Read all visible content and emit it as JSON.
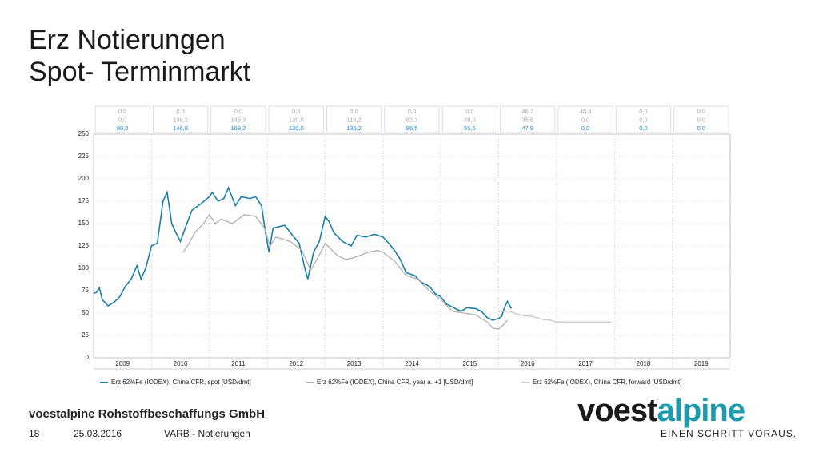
{
  "slide": {
    "title_line1": "Erz Notierungen",
    "title_line2": "Spot- Terminmarkt",
    "company": "voestalpine Rohstoffbeschaffungs GmbH",
    "page": "18",
    "date": "25.03.2016",
    "section": "VARB - Notierungen",
    "logo_part1": "voest",
    "logo_part2": "alpine",
    "tagline": "EINEN SCHRITT VORAUS."
  },
  "chart_data": {
    "type": "line",
    "xlim": [
      2009,
      2020
    ],
    "xticks": [
      {
        "value": 2009.5,
        "label": "2009"
      },
      {
        "value": 2010.5,
        "label": "2010"
      },
      {
        "value": 2011.5,
        "label": "2011"
      },
      {
        "value": 2012.5,
        "label": "2012"
      },
      {
        "value": 2013.5,
        "label": "2013"
      },
      {
        "value": 2014.5,
        "label": "2014"
      },
      {
        "value": 2015.5,
        "label": "2015"
      },
      {
        "value": 2016.5,
        "label": "2016"
      },
      {
        "value": 2017.5,
        "label": "2017"
      },
      {
        "value": 2018.5,
        "label": "2018"
      },
      {
        "value": 2019.5,
        "label": "2019"
      }
    ],
    "ylim": [
      0,
      250
    ],
    "yticks": [
      0,
      25,
      50,
      75,
      100,
      125,
      150,
      175,
      200,
      225,
      250
    ],
    "grid": true,
    "table": [
      [
        "0,0",
        "0,0",
        "0,0",
        "0,0",
        "0,0",
        "0,0",
        "0,0",
        "48,7",
        "40,4",
        "0,0",
        "0,0"
      ],
      [
        "0,0",
        "136,2",
        "145,3",
        "120,0",
        "116,2",
        "82,3",
        "48,0",
        "35,6",
        "0,0",
        "0,0",
        "0,0"
      ],
      [
        "80,0",
        "146,8",
        "169,2",
        "130,0",
        "135,2",
        "96,5",
        "55,5",
        "47,9",
        "0,0",
        "0,0",
        "0,0"
      ]
    ],
    "table_colors": [
      "#a8a8a8",
      "#a8a8a8",
      "#1a8bc9"
    ],
    "series": [
      {
        "name": "Erz 62%Fe (IODEX), China CFR, spot [USD/dmt]",
        "color": "#1a7fa8",
        "x": [
          2009.0,
          2009.05,
          2009.1,
          2009.15,
          2009.25,
          2009.35,
          2009.45,
          2009.55,
          2009.65,
          2009.75,
          2009.82,
          2009.9,
          2010.0,
          2010.1,
          2010.2,
          2010.27,
          2010.35,
          2010.42,
          2010.5,
          2010.6,
          2010.7,
          2010.85,
          2011.0,
          2011.05,
          2011.15,
          2011.25,
          2011.33,
          2011.45,
          2011.55,
          2011.7,
          2011.8,
          2011.9,
          2011.97,
          2012.03,
          2012.1,
          2012.3,
          2012.4,
          2012.55,
          2012.65,
          2012.7,
          2012.8,
          2012.9,
          2013.0,
          2013.07,
          2013.15,
          2013.3,
          2013.45,
          2013.55,
          2013.7,
          2013.85,
          2014.0,
          2014.1,
          2014.2,
          2014.3,
          2014.4,
          2014.55,
          2014.65,
          2014.8,
          2014.9,
          2015.0,
          2015.1,
          2015.25,
          2015.35,
          2015.45,
          2015.6,
          2015.7,
          2015.8,
          2015.9,
          2016.0,
          2016.05,
          2016.1,
          2016.15,
          2016.22
        ],
        "values": [
          72,
          73,
          78,
          65,
          58,
          62,
          68,
          80,
          88,
          103,
          88,
          100,
          125,
          128,
          175,
          185,
          150,
          140,
          130,
          148,
          165,
          172,
          180,
          185,
          175,
          178,
          190,
          170,
          180,
          178,
          180,
          170,
          140,
          118,
          145,
          148,
          140,
          128,
          100,
          88,
          118,
          130,
          158,
          152,
          140,
          130,
          125,
          137,
          135,
          138,
          135,
          128,
          120,
          110,
          95,
          92,
          85,
          80,
          72,
          68,
          60,
          55,
          52,
          56,
          55,
          52,
          45,
          42,
          44,
          46,
          56,
          63,
          55
        ]
      },
      {
        "name": "Erz 62%Fe (IODEX), China CFR, year a. +1 [USD/dmt]",
        "color": "#b0b0b0",
        "x": [
          2010.55,
          2010.65,
          2010.75,
          2010.9,
          2011.0,
          2011.1,
          2011.2,
          2011.4,
          2011.6,
          2011.8,
          2011.95,
          2012.05,
          2012.15,
          2012.4,
          2012.6,
          2012.75,
          2012.9,
          2013.0,
          2013.2,
          2013.35,
          2013.5,
          2013.75,
          2013.9,
          2014.0,
          2014.2,
          2014.4,
          2014.6,
          2014.8,
          2015.0,
          2015.2,
          2015.4,
          2015.6,
          2015.8,
          2015.9,
          2016.0,
          2016.1,
          2016.15
        ],
        "values": [
          118,
          128,
          140,
          150,
          160,
          150,
          155,
          150,
          160,
          158,
          145,
          125,
          135,
          130,
          120,
          98,
          115,
          128,
          115,
          110,
          112,
          118,
          120,
          118,
          108,
          92,
          88,
          75,
          65,
          52,
          50,
          48,
          40,
          33,
          32,
          38,
          42
        ]
      },
      {
        "name": "Erz 62%Fe (IODEX), China CFR, forward [USD/dmt]",
        "color": "#c8c8c8",
        "x": [
          2016.0,
          2016.2,
          2016.3,
          2016.45,
          2016.6,
          2016.75,
          2016.9,
          2017.0,
          2017.5,
          2017.95
        ],
        "values": [
          52,
          52,
          49,
          47,
          46,
          43,
          42,
          40,
          40,
          40
        ]
      }
    ]
  }
}
